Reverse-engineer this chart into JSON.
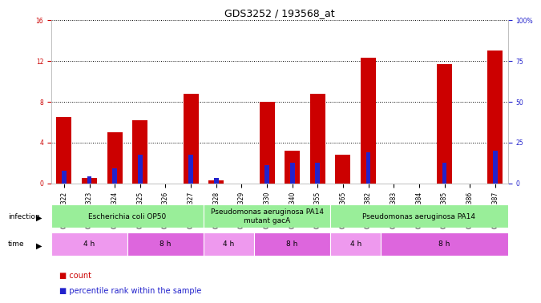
{
  "title": "GDS3252 / 193568_at",
  "samples": [
    "GSM135322",
    "GSM135323",
    "GSM135324",
    "GSM135325",
    "GSM135326",
    "GSM135327",
    "GSM135328",
    "GSM135329",
    "GSM135330",
    "GSM135340",
    "GSM135355",
    "GSM135365",
    "GSM135382",
    "GSM135383",
    "GSM135384",
    "GSM135385",
    "GSM135386",
    "GSM135387"
  ],
  "count_values": [
    6.5,
    0.5,
    5.0,
    6.2,
    0.0,
    8.8,
    0.3,
    0.0,
    8.0,
    3.2,
    8.8,
    2.8,
    12.3,
    0.0,
    0.0,
    11.7,
    0.0,
    13.0
  ],
  "percentile_values": [
    1.2,
    0.7,
    1.5,
    2.8,
    0.0,
    2.8,
    0.5,
    0.0,
    1.8,
    2.0,
    2.0,
    0.0,
    3.0,
    0.0,
    0.0,
    2.0,
    0.0,
    3.2
  ],
  "ylim_left": [
    0,
    16
  ],
  "ylim_right": [
    0,
    100
  ],
  "yticks_left": [
    0,
    4,
    8,
    12,
    16
  ],
  "yticks_right": [
    0,
    25,
    50,
    75,
    100
  ],
  "ytick_labels_right": [
    "0",
    "25",
    "50",
    "75",
    "100%"
  ],
  "bar_color_red": "#cc0000",
  "bar_color_blue": "#2222cc",
  "bar_width": 0.6,
  "blue_bar_width": 0.18,
  "infection_groups": [
    {
      "label": "Escherichia coli OP50",
      "start": 0,
      "end": 6,
      "color": "#99ee99"
    },
    {
      "label": "Pseudomonas aeruginosa PA14\nmutant gacA",
      "start": 6,
      "end": 11,
      "color": "#99ee99"
    },
    {
      "label": "Pseudomonas aeruginosa PA14",
      "start": 11,
      "end": 18,
      "color": "#99ee99"
    }
  ],
  "time_groups": [
    {
      "label": "4 h",
      "start": 0,
      "end": 3,
      "color": "#ee99ee"
    },
    {
      "label": "8 h",
      "start": 3,
      "end": 6,
      "color": "#dd66dd"
    },
    {
      "label": "4 h",
      "start": 6,
      "end": 8,
      "color": "#ee99ee"
    },
    {
      "label": "8 h",
      "start": 8,
      "end": 11,
      "color": "#dd66dd"
    },
    {
      "label": "4 h",
      "start": 11,
      "end": 13,
      "color": "#ee99ee"
    },
    {
      "label": "8 h",
      "start": 13,
      "end": 18,
      "color": "#dd66dd"
    }
  ],
  "bg_color": "#ffffff",
  "legend_items": [
    "count",
    "percentile rank within the sample"
  ],
  "legend_colors": [
    "#cc0000",
    "#2222cc"
  ],
  "title_fontsize": 9,
  "tick_fontsize": 5.5,
  "row_fontsize": 6.5
}
